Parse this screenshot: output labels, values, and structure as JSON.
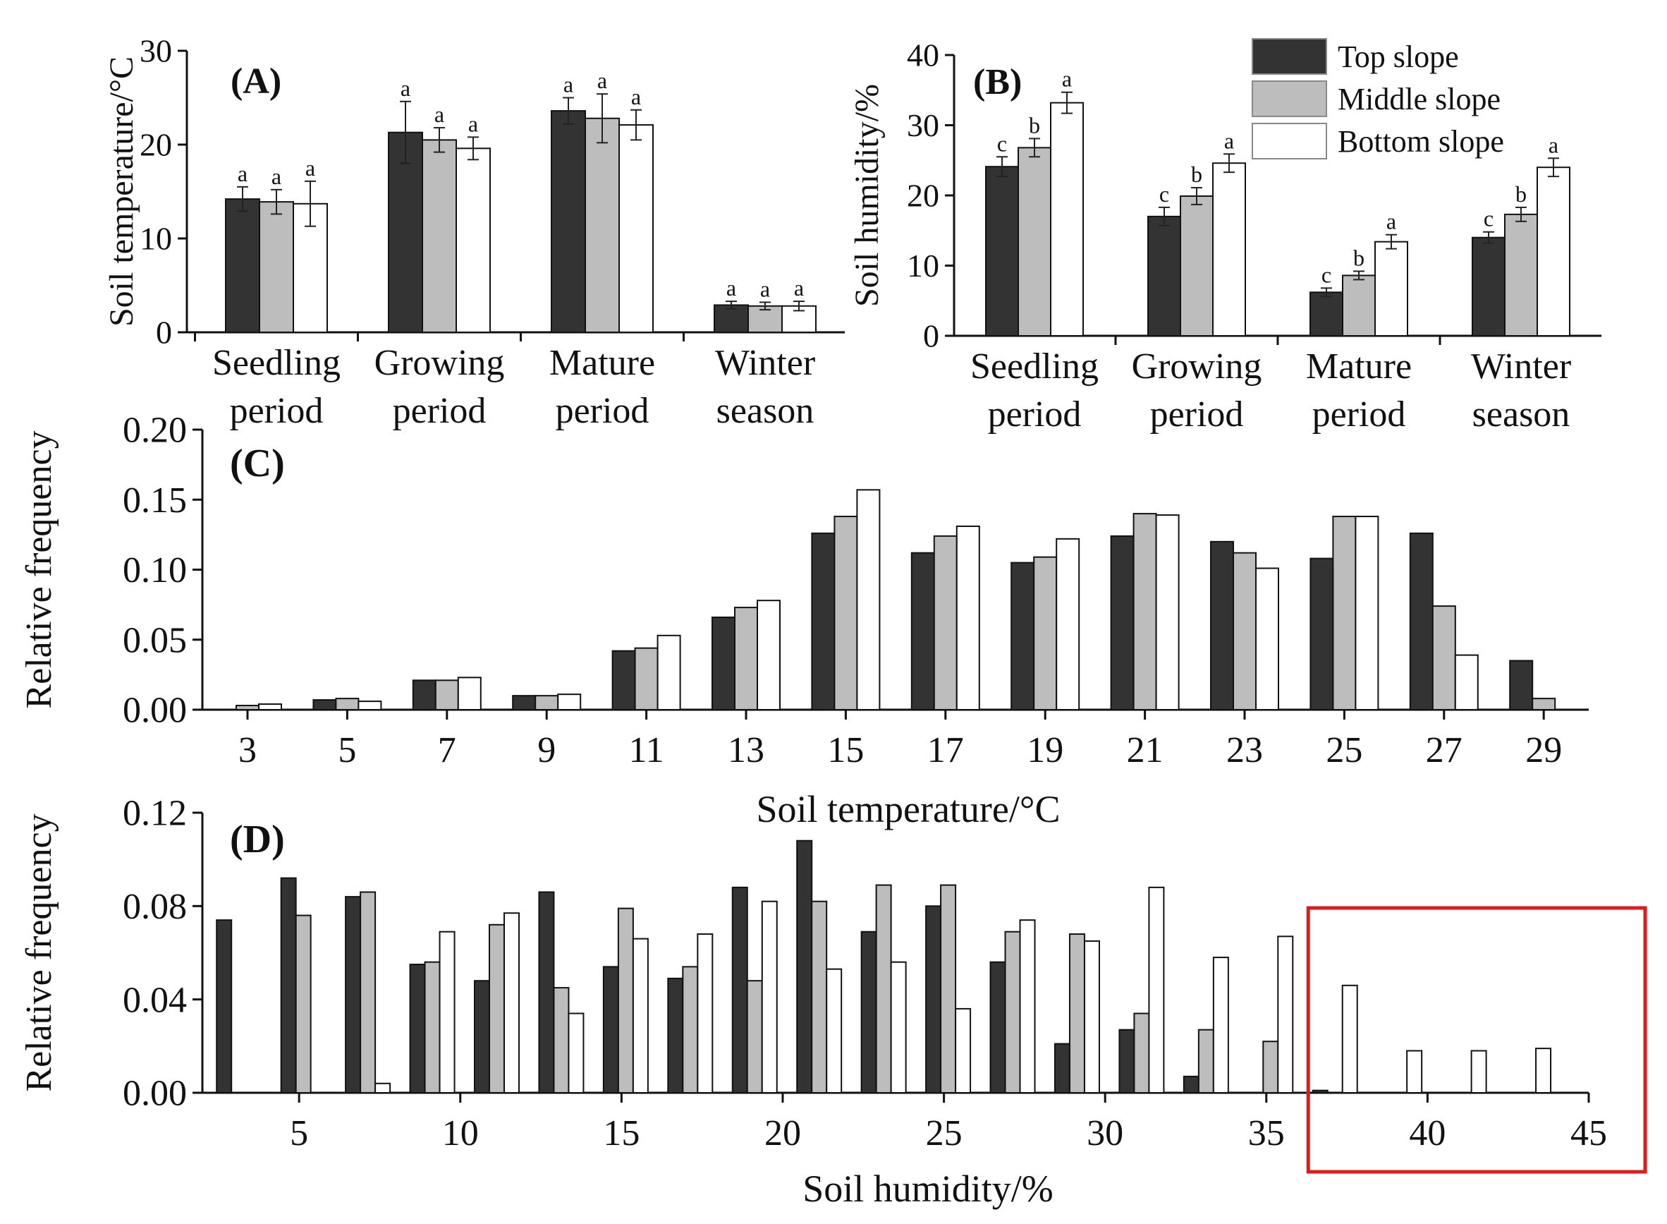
{
  "colors": {
    "top_slope": "#333333",
    "middle_slope": "#bdbdbd",
    "bottom_slope": "#ffffff",
    "highlight_box": "#e01b1b"
  },
  "legend": {
    "items": [
      {
        "label": "Top slope",
        "color": "#333333"
      },
      {
        "label": "Middle slope",
        "color": "#bdbdbd"
      },
      {
        "label": "Bottom slope",
        "color": "#ffffff"
      }
    ]
  },
  "chart_data": [
    {
      "id": "A",
      "panel_label": "(A)",
      "type": "bar",
      "ylabel": "Soil temperature/°C",
      "ylim": [
        0,
        30
      ],
      "yticks": [
        "0",
        "10",
        "20",
        "30"
      ],
      "categories": [
        [
          "Seedling",
          "period"
        ],
        [
          "Growing",
          "period"
        ],
        [
          "Mature",
          "period"
        ],
        [
          "Winter",
          "season"
        ]
      ],
      "series": [
        {
          "name": "Top slope",
          "values": [
            14.2,
            21.3,
            23.6,
            2.9
          ],
          "errors": [
            1.3,
            3.3,
            1.4,
            0.4
          ],
          "letters": [
            "a",
            "a",
            "a",
            "a"
          ]
        },
        {
          "name": "Middle slope",
          "values": [
            13.9,
            20.5,
            22.8,
            2.8
          ],
          "errors": [
            1.3,
            1.3,
            2.6,
            0.4
          ],
          "letters": [
            "a",
            "a",
            "a",
            "a"
          ]
        },
        {
          "name": "Bottom slope",
          "values": [
            13.7,
            19.6,
            22.1,
            2.8
          ],
          "errors": [
            2.4,
            1.2,
            1.6,
            0.5
          ],
          "letters": [
            "a",
            "a",
            "a",
            "a"
          ]
        }
      ]
    },
    {
      "id": "B",
      "panel_label": "(B)",
      "type": "bar",
      "ylabel": "Soil humidity/%",
      "ylim": [
        0,
        40
      ],
      "yticks": [
        "0",
        "10",
        "20",
        "30",
        "40"
      ],
      "categories": [
        [
          "Seedling",
          "period"
        ],
        [
          "Growing",
          "period"
        ],
        [
          "Mature",
          "period"
        ],
        [
          "Winter",
          "season"
        ]
      ],
      "series": [
        {
          "name": "Top slope",
          "values": [
            24.1,
            17.0,
            6.2,
            14.0
          ],
          "errors": [
            1.4,
            1.3,
            0.6,
            0.8
          ],
          "letters": [
            "c",
            "c",
            "c",
            "c"
          ]
        },
        {
          "name": "Middle slope",
          "values": [
            26.8,
            19.9,
            8.6,
            17.3
          ],
          "errors": [
            1.3,
            1.2,
            0.6,
            1.0
          ],
          "letters": [
            "b",
            "b",
            "b",
            "b"
          ]
        },
        {
          "name": "Bottom slope",
          "values": [
            33.2,
            24.6,
            13.4,
            24.0
          ],
          "errors": [
            1.5,
            1.3,
            1.0,
            1.3
          ],
          "letters": [
            "a",
            "a",
            "a",
            "a"
          ]
        }
      ]
    },
    {
      "id": "C",
      "panel_label": "(C)",
      "type": "bar",
      "ylabel": "Relative frequency",
      "xlabel": "Soil temperature/°C",
      "ylim": [
        0,
        0.2
      ],
      "yticks": [
        "0.00",
        "0.05",
        "0.10",
        "0.15",
        "0.20"
      ],
      "categories": [
        "3",
        "5",
        "7",
        "9",
        "11",
        "13",
        "15",
        "17",
        "19",
        "21",
        "23",
        "25",
        "27",
        "29"
      ],
      "series": [
        {
          "name": "Top slope",
          "values": [
            0,
            0.007,
            0.021,
            0.01,
            0.042,
            0.066,
            0.126,
            0.112,
            0.105,
            0.124,
            0.12,
            0.108,
            0.126,
            0.035
          ]
        },
        {
          "name": "Middle slope",
          "values": [
            0.003,
            0.008,
            0.021,
            0.01,
            0.044,
            0.073,
            0.138,
            0.124,
            0.109,
            0.14,
            0.112,
            0.138,
            0.074,
            0.008
          ]
        },
        {
          "name": "Bottom slope",
          "values": [
            0.004,
            0.006,
            0.023,
            0.011,
            0.053,
            0.078,
            0.157,
            0.131,
            0.122,
            0.139,
            0.101,
            0.138,
            0.039,
            0
          ]
        }
      ]
    },
    {
      "id": "D",
      "panel_label": "(D)",
      "type": "bar",
      "ylabel": "Relative frequency",
      "xlabel": "Soil humidity/%",
      "ylim": [
        0,
        0.12
      ],
      "xlim": [
        2,
        45
      ],
      "yticks": [
        "0.00",
        "0.04",
        "0.08",
        "0.12"
      ],
      "xticks": [
        "5",
        "10",
        "15",
        "20",
        "25",
        "30",
        "35",
        "40",
        "45"
      ],
      "group_centers": [
        3,
        5,
        7,
        9,
        11,
        13,
        15,
        17,
        19,
        21,
        23,
        25,
        27,
        29,
        31,
        33,
        35,
        37,
        39,
        41,
        43
      ],
      "series": [
        {
          "name": "Top slope",
          "values": [
            0.074,
            0.092,
            0.084,
            0.055,
            0.048,
            0.086,
            0.054,
            0.049,
            0.088,
            0.108,
            0.069,
            0.08,
            0.056,
            0.021,
            0.027,
            0.007,
            0,
            0.001,
            0,
            0,
            0
          ]
        },
        {
          "name": "Middle slope",
          "values": [
            0,
            0.076,
            0.086,
            0.056,
            0.072,
            0.045,
            0.079,
            0.054,
            0.048,
            0.082,
            0.089,
            0.089,
            0.069,
            0.068,
            0.034,
            0.027,
            0.022,
            0,
            0,
            0,
            0
          ]
        },
        {
          "name": "Bottom slope",
          "values": [
            0,
            0,
            0.004,
            0.069,
            0.077,
            0.034,
            0.066,
            0.068,
            0.082,
            0.053,
            0.056,
            0.036,
            0.074,
            0.065,
            0.088,
            0.058,
            0.067,
            0.046,
            0.018,
            0.018,
            0.019
          ]
        }
      ],
      "highlight": {
        "x_from": 36.3,
        "x_to": 47
      }
    }
  ]
}
